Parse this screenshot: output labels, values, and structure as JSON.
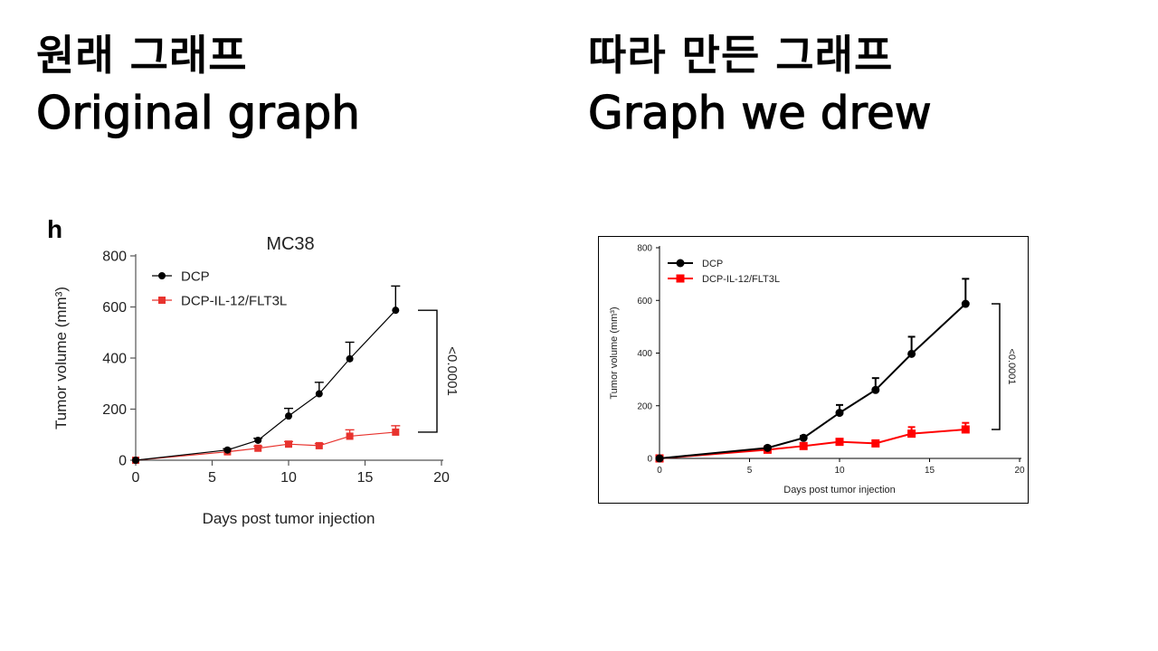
{
  "headings": {
    "left_korean": "원래 그래프",
    "left_english": "Original graph",
    "right_korean": "따라 만든 그래프",
    "right_english": "Graph we drew"
  },
  "chart_data": [
    {
      "type": "line",
      "panel_label": "h",
      "title": "MC38",
      "xlabel": "Days post tumor injection",
      "ylabel": "Tumor volume (mm³)",
      "xlim": [
        0,
        20
      ],
      "ylim": [
        0,
        800
      ],
      "xticks": [
        0,
        5,
        10,
        15,
        20
      ],
      "yticks": [
        0,
        200,
        400,
        600,
        800
      ],
      "legend_position": "top-left",
      "annotation": "<0.0001",
      "series": [
        {
          "name": "DCP",
          "color": "#000000",
          "marker": "circle",
          "x": [
            0,
            6,
            8,
            10,
            12,
            14,
            17
          ],
          "y": [
            0,
            40,
            78,
            173,
            260,
            397,
            587
          ],
          "err": [
            3,
            5,
            8,
            30,
            45,
            65,
            95
          ]
        },
        {
          "name": "DCP-IL-12/FLT3L",
          "color": "#e8332e",
          "marker": "square",
          "x": [
            0,
            6,
            8,
            10,
            12,
            14,
            17
          ],
          "y": [
            0,
            33,
            47,
            63,
            57,
            94,
            110
          ],
          "err": [
            3,
            5,
            8,
            10,
            8,
            25,
            25
          ]
        }
      ]
    },
    {
      "type": "line",
      "xlabel": "Days post tumor injection",
      "ylabel": "Tumor volume (mm³)",
      "xlim": [
        0,
        20
      ],
      "ylim": [
        0,
        800
      ],
      "xticks": [
        0,
        5,
        10,
        15,
        20
      ],
      "yticks": [
        0,
        200,
        400,
        600,
        800
      ],
      "legend_position": "top-left",
      "annotation": "<0.0001",
      "series": [
        {
          "name": "DCP",
          "color": "#000000",
          "marker": "circle",
          "x": [
            0,
            6,
            8,
            10,
            12,
            14,
            17
          ],
          "y": [
            0,
            40,
            78,
            173,
            260,
            397,
            587
          ],
          "err": [
            3,
            5,
            8,
            30,
            45,
            65,
            95
          ]
        },
        {
          "name": "DCP-IL-12/FLT3L",
          "color": "#ff0000",
          "marker": "square",
          "x": [
            0,
            6,
            8,
            10,
            12,
            14,
            17
          ],
          "y": [
            0,
            33,
            47,
            63,
            57,
            94,
            110
          ],
          "err": [
            3,
            5,
            8,
            10,
            8,
            25,
            25
          ]
        }
      ]
    }
  ]
}
